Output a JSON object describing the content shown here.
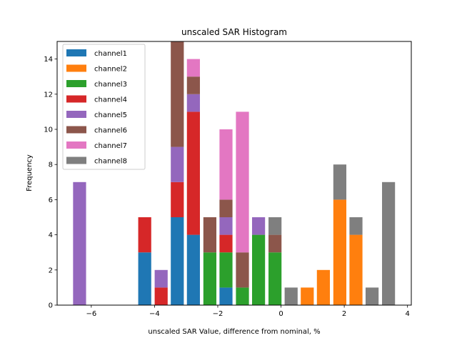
{
  "chart_data": {
    "type": "bar",
    "stacked": true,
    "title": "unscaled SAR Histogram",
    "xlabel": "unscaled SAR Value, difference from nominal, %",
    "ylabel": "Frequency",
    "xlim": [
      -7.08,
      4.12
    ],
    "ylim": [
      0,
      15
    ],
    "xticks": [
      -6,
      -4,
      -2,
      0,
      2,
      4
    ],
    "xtick_labels": [
      "−6",
      "−4",
      "−2",
      "0",
      "2",
      "4"
    ],
    "yticks": [
      0,
      2,
      4,
      6,
      8,
      10,
      12,
      14
    ],
    "ytick_labels": [
      "0",
      "2",
      "4",
      "6",
      "8",
      "10",
      "12",
      "14"
    ],
    "grid": false,
    "legend_position": "upper-left",
    "bin_width": 0.514,
    "bar_width_fraction": 0.8,
    "bin_centers": [
      -6.37,
      -5.85,
      -5.34,
      -4.82,
      -4.31,
      -3.79,
      -3.28,
      -2.77,
      -2.25,
      -1.74,
      -1.22,
      -0.71,
      -0.19,
      0.32,
      0.83,
      1.34,
      1.86,
      2.37,
      2.88,
      3.4
    ],
    "series": [
      {
        "name": "channel1",
        "color": "#1f77b4",
        "values": [
          0,
          0,
          0,
          0,
          3,
          0,
          5,
          4,
          0,
          1,
          0,
          0,
          0,
          0,
          0,
          0,
          0,
          0,
          0,
          0
        ]
      },
      {
        "name": "channel2",
        "color": "#ff7f0e",
        "values": [
          0,
          0,
          0,
          0,
          0,
          0,
          0,
          0,
          0,
          0,
          0,
          0,
          0,
          0,
          1,
          2,
          6,
          4,
          0,
          0
        ]
      },
      {
        "name": "channel3",
        "color": "#2ca02c",
        "values": [
          0,
          0,
          0,
          0,
          0,
          0,
          0,
          0,
          3,
          2,
          1,
          4,
          3,
          0,
          0,
          0,
          0,
          0,
          0,
          0
        ]
      },
      {
        "name": "channel4",
        "color": "#d62728",
        "values": [
          0,
          0,
          0,
          0,
          2,
          1,
          2,
          7,
          0,
          1,
          0,
          0,
          0,
          0,
          0,
          0,
          0,
          0,
          0,
          0
        ]
      },
      {
        "name": "channel5",
        "color": "#9467bd",
        "values": [
          7,
          0,
          0,
          0,
          0,
          1,
          2,
          1,
          0,
          1,
          0,
          1,
          0,
          0,
          0,
          0,
          0,
          0,
          0,
          0
        ]
      },
      {
        "name": "channel6",
        "color": "#8c564b",
        "values": [
          0,
          0,
          0,
          0,
          0,
          0,
          6,
          1,
          2,
          1,
          2,
          0,
          1,
          0,
          0,
          0,
          0,
          0,
          0,
          0
        ]
      },
      {
        "name": "channel7",
        "color": "#e377c2",
        "values": [
          0,
          0,
          0,
          0,
          0,
          0,
          0,
          1,
          0,
          4,
          8,
          0,
          0,
          0,
          0,
          0,
          0,
          0,
          0,
          0
        ]
      },
      {
        "name": "channel8",
        "color": "#7f7f7f",
        "values": [
          0,
          0,
          0,
          0,
          0,
          0,
          0,
          0,
          0,
          0,
          0,
          0,
          1,
          1,
          0,
          0,
          2,
          1,
          1,
          7
        ]
      }
    ]
  }
}
